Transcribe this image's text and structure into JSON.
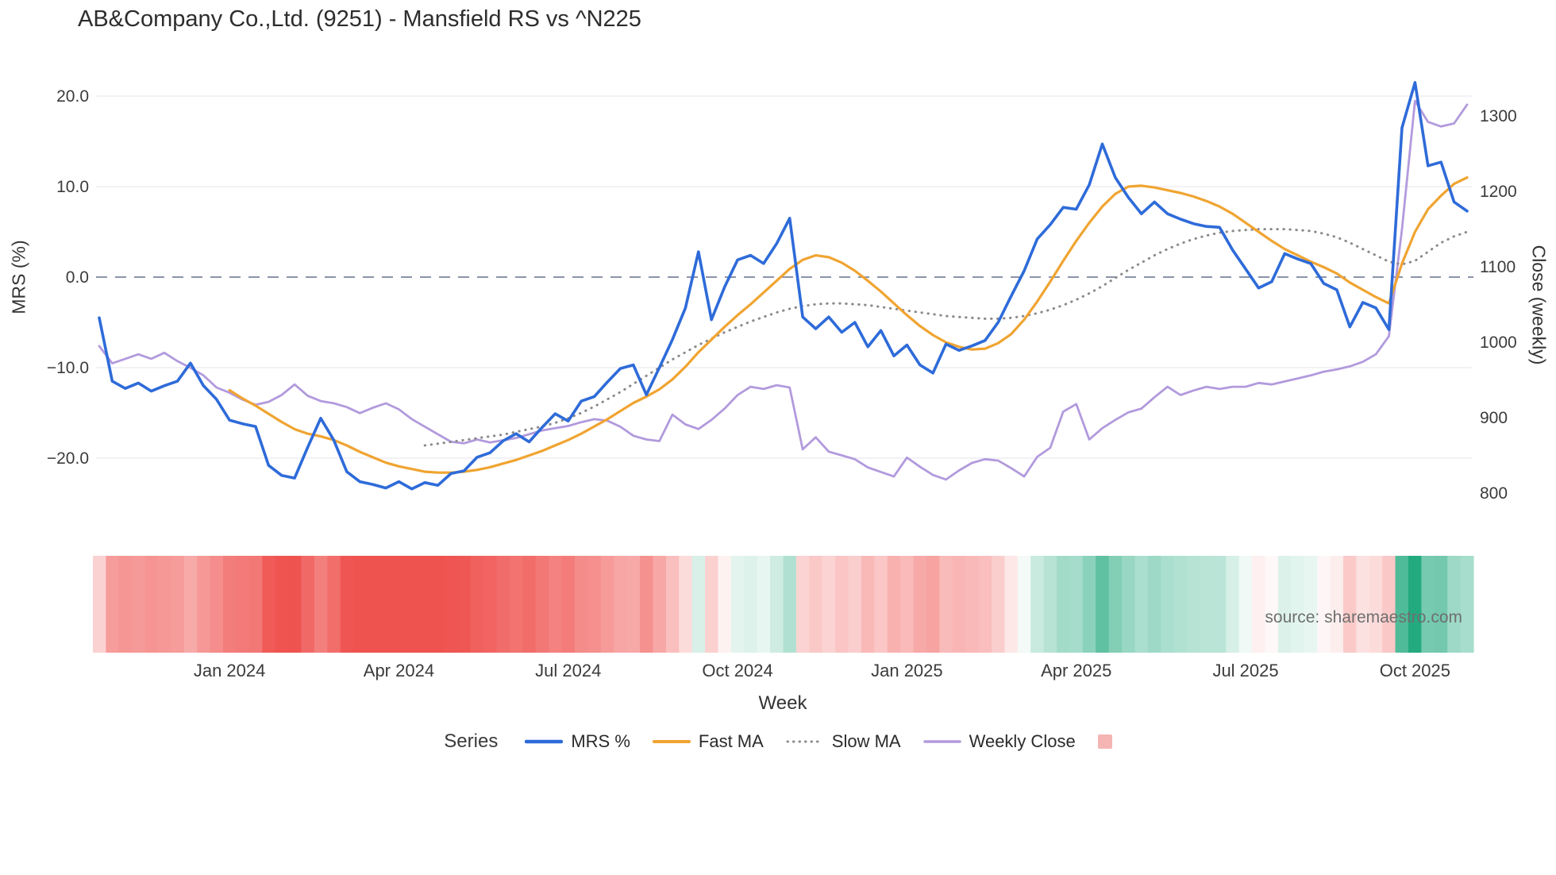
{
  "title": "AB&Company Co.,Ltd. (9251) - Mansfield RS vs ^N225",
  "source": "source: sharemaestro.com",
  "axes": {
    "left_label": "MRS (%)",
    "right_label": "Close (weekly)",
    "x_label": "Week",
    "left_ticks": [
      {
        "v": 20,
        "label": "20.0"
      },
      {
        "v": 10,
        "label": "10.0"
      },
      {
        "v": 0,
        "label": "0.0"
      },
      {
        "v": -10,
        "label": "−10.0"
      },
      {
        "v": -20,
        "label": "−20.0"
      }
    ],
    "right_ticks": [
      {
        "v": 1300,
        "label": "1300"
      },
      {
        "v": 1200,
        "label": "1200"
      },
      {
        "v": 1100,
        "label": "1100"
      },
      {
        "v": 1000,
        "label": "1000"
      },
      {
        "v": 900,
        "label": "900"
      },
      {
        "v": 800,
        "label": "800"
      }
    ],
    "x_ticks": [
      {
        "i": 10,
        "label": "Jan 2024"
      },
      {
        "i": 23,
        "label": "Apr 2024"
      },
      {
        "i": 36,
        "label": "Jul 2024"
      },
      {
        "i": 49,
        "label": "Oct 2024"
      },
      {
        "i": 62,
        "label": "Jan 2025"
      },
      {
        "i": 75,
        "label": "Apr 2025"
      },
      {
        "i": 88,
        "label": "Jul 2025"
      },
      {
        "i": 101,
        "label": "Oct 2025"
      }
    ]
  },
  "legend": {
    "title": "Series",
    "items": [
      {
        "label": "MRS %",
        "type": "line",
        "style": "solid",
        "color": "#2e6bd9",
        "width": 4.5
      },
      {
        "label": "Fast MA",
        "type": "line",
        "style": "solid",
        "color": "#f0a431",
        "width": 4
      },
      {
        "label": "Slow MA",
        "type": "line",
        "style": "dotted",
        "color": "#8b8b8b",
        "width": 3
      },
      {
        "label": "Weekly Close",
        "type": "line",
        "style": "solid",
        "color": "#b29add",
        "width": 3.5
      },
      {
        "label": "",
        "type": "square",
        "style": "solid",
        "color": "#f5b6b3",
        "width": 0
      }
    ]
  },
  "colors": {
    "grid": "#ebebf0",
    "zero_line": "#8a93a8",
    "heat_positive": "#1fa87c",
    "heat_negative": "#ef5350"
  },
  "chart_data": {
    "type": "line",
    "x_unit": "week",
    "n_points": 106,
    "left_axis": {
      "label": "MRS (%)",
      "ticks": [
        20,
        10,
        0,
        -10,
        -20
      ]
    },
    "right_axis": {
      "label": "Close (weekly)",
      "ticks": [
        1300,
        1200,
        1100,
        1000,
        900,
        800
      ]
    },
    "heatmap": {
      "basis": "MRS %",
      "max_abs": 22
    },
    "series": [
      {
        "name": "MRS %",
        "axis": "left",
        "color": "#2e6bd9",
        "style": "solid",
        "width": 3.6,
        "z": 4,
        "start_index": 0,
        "values": [
          -4.5,
          -11.5,
          -12.3,
          -11.7,
          -12.6,
          -12,
          -11.5,
          -9.5,
          -12,
          -13.5,
          -15.8,
          -16.2,
          -16.5,
          -20.8,
          -21.9,
          -22.2,
          -18.8,
          -15.6,
          -18,
          -21.5,
          -22.6,
          -22.9,
          -23.3,
          -22.6,
          -23.4,
          -22.7,
          -23,
          -21.7,
          -21.4,
          -19.9,
          -19.4,
          -18.1,
          -17.3,
          -18.2,
          -16.6,
          -15.1,
          -15.9,
          -13.7,
          -13.2,
          -11.6,
          -10.1,
          -9.7,
          -13,
          -10,
          -6.9,
          -3.4,
          2.8,
          -4.7,
          -1.1,
          1.9,
          2.4,
          1.5,
          3.7,
          6.5,
          -4.4,
          -5.7,
          -4.4,
          -6.1,
          -5,
          -7.7,
          -5.9,
          -8.7,
          -7.5,
          -9.7,
          -10.6,
          -7.4,
          -8.1,
          -7.6,
          -7,
          -5,
          -2.1,
          0.7,
          4.2,
          5.8,
          7.7,
          7.5,
          10.2,
          14.7,
          11,
          8.8,
          7,
          8.3,
          7,
          6.4,
          5.9,
          5.6,
          5.5,
          3,
          0.9,
          -1.2,
          -0.5,
          2.6,
          2,
          1.5,
          -0.7,
          -1.4,
          -5.5,
          -2.8,
          -3.4,
          -5.8,
          16.5,
          21.5,
          12.3,
          12.7,
          8.3,
          7.3
        ]
      },
      {
        "name": "Fast MA",
        "axis": "left",
        "color": "#f0a431",
        "style": "solid",
        "width": 3.2,
        "z": 3,
        "start_index": 10,
        "values": [
          -12.5,
          -13.4,
          -14.2,
          -15.1,
          -16,
          -16.8,
          -17.3,
          -17.6,
          -18,
          -18.6,
          -19.3,
          -19.9,
          -20.5,
          -20.9,
          -21.2,
          -21.5,
          -21.6,
          -21.6,
          -21.5,
          -21.3,
          -21,
          -20.6,
          -20.2,
          -19.7,
          -19.2,
          -18.6,
          -18,
          -17.3,
          -16.5,
          -15.7,
          -14.8,
          -13.9,
          -13.2,
          -12.4,
          -11.3,
          -9.9,
          -8.3,
          -6.9,
          -5.5,
          -4.2,
          -3,
          -1.7,
          -0.4,
          0.9,
          1.9,
          2.4,
          2.2,
          1.6,
          0.7,
          -0.4,
          -1.6,
          -2.9,
          -4.2,
          -5.4,
          -6.4,
          -7.2,
          -7.7,
          -8,
          -7.9,
          -7.3,
          -6.3,
          -4.7,
          -2.7,
          -0.5,
          1.8,
          4,
          6,
          7.8,
          9.2,
          10,
          10.1,
          9.9,
          9.6,
          9.3,
          8.9,
          8.4,
          7.8,
          7,
          6,
          5,
          4,
          3.1,
          2.4,
          1.7,
          1.1,
          0.4,
          -0.6,
          -1.4,
          -2.2,
          -2.9,
          1.5,
          5,
          7.5,
          9,
          10.3,
          11
        ]
      },
      {
        "name": "Slow MA",
        "axis": "left",
        "color": "#8b8b8b",
        "style": "dotted",
        "width": 3,
        "z": 2,
        "start_index": 25,
        "values": [
          -18.6,
          -18.4,
          -18.2,
          -18,
          -17.8,
          -17.6,
          -17.4,
          -17.1,
          -16.8,
          -16.5,
          -16.1,
          -15.6,
          -15,
          -14.3,
          -13.5,
          -12.7,
          -11.8,
          -10.9,
          -10,
          -9.1,
          -8.3,
          -7.5,
          -6.8,
          -6.1,
          -5.5,
          -4.9,
          -4.4,
          -3.9,
          -3.5,
          -3.2,
          -3,
          -2.9,
          -2.9,
          -3,
          -3.1,
          -3.3,
          -3.5,
          -3.7,
          -3.9,
          -4.1,
          -4.3,
          -4.4,
          -4.5,
          -4.6,
          -4.6,
          -4.5,
          -4.3,
          -4,
          -3.6,
          -3.1,
          -2.5,
          -1.8,
          -1,
          -0.1,
          0.8,
          1.6,
          2.4,
          3.1,
          3.7,
          4.2,
          4.6,
          4.9,
          5.1,
          5.2,
          5.3,
          5.3,
          5.3,
          5.2,
          5.1,
          4.8,
          4.4,
          3.8,
          3.1,
          2.4,
          1.7,
          1.4,
          1.8,
          2.8,
          3.8,
          4.5,
          5
        ]
      },
      {
        "name": "Weekly Close",
        "axis": "right",
        "color": "#b29add",
        "style": "solid",
        "width": 2.8,
        "z": 1,
        "start_index": 0,
        "values": [
          995,
          972,
          978,
          984,
          978,
          986,
          975,
          966,
          956,
          940,
          933,
          924,
          917,
          921,
          930,
          944,
          929,
          922,
          919,
          914,
          906,
          913,
          919,
          911,
          898,
          888,
          878,
          868,
          866,
          871,
          867,
          870,
          873,
          878,
          883,
          886,
          889,
          894,
          898,
          896,
          888,
          876,
          871,
          869,
          904,
          891,
          885,
          897,
          912,
          930,
          941,
          938,
          943,
          940,
          858,
          874,
          855,
          850,
          845,
          834,
          828,
          822,
          847,
          835,
          824,
          818,
          830,
          840,
          845,
          843,
          833,
          822,
          848,
          860,
          908,
          918,
          871,
          886,
          897,
          907,
          912,
          927,
          941,
          930,
          936,
          941,
          938,
          941,
          941,
          946,
          944,
          948,
          952,
          956,
          961,
          964,
          968,
          974,
          984,
          1008,
          1150,
          1320,
          1292,
          1286,
          1290,
          1315
        ]
      }
    ]
  }
}
